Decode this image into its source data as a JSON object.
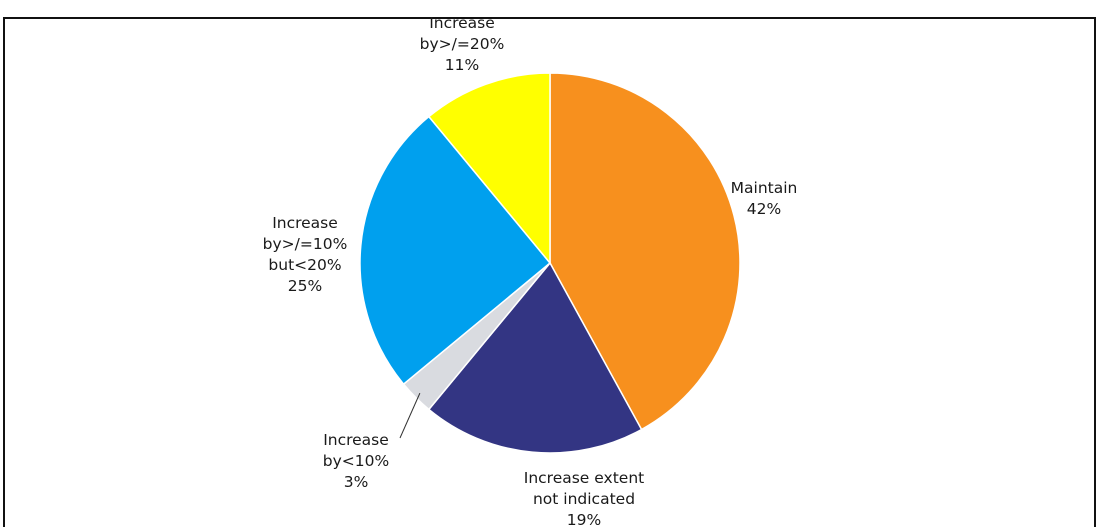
{
  "chart_data": {
    "type": "pie",
    "title": "",
    "slices": [
      {
        "key": "maintain",
        "label_lines": [
          "Maintain",
          "42%"
        ],
        "value": 42,
        "color": "#F7901E"
      },
      {
        "key": "increase-extent-not-indicated",
        "label_lines": [
          "Increase extent",
          "not indicated",
          "19%"
        ],
        "value": 19,
        "color": "#333583"
      },
      {
        "key": "increase-under-10",
        "label_lines": [
          "Increase",
          "by<10%",
          "3%"
        ],
        "value": 3,
        "color": "#D9DBE0"
      },
      {
        "key": "increase-10-to-20",
        "label_lines": [
          "Increase",
          "by>/=10%",
          "but<20%",
          "25%"
        ],
        "value": 25,
        "color": "#00A0EE"
      },
      {
        "key": "increase-20-plus",
        "label_lines": [
          "Increase",
          "by>/=20%",
          "11%"
        ],
        "value": 11,
        "color": "#FFFF00"
      }
    ]
  }
}
